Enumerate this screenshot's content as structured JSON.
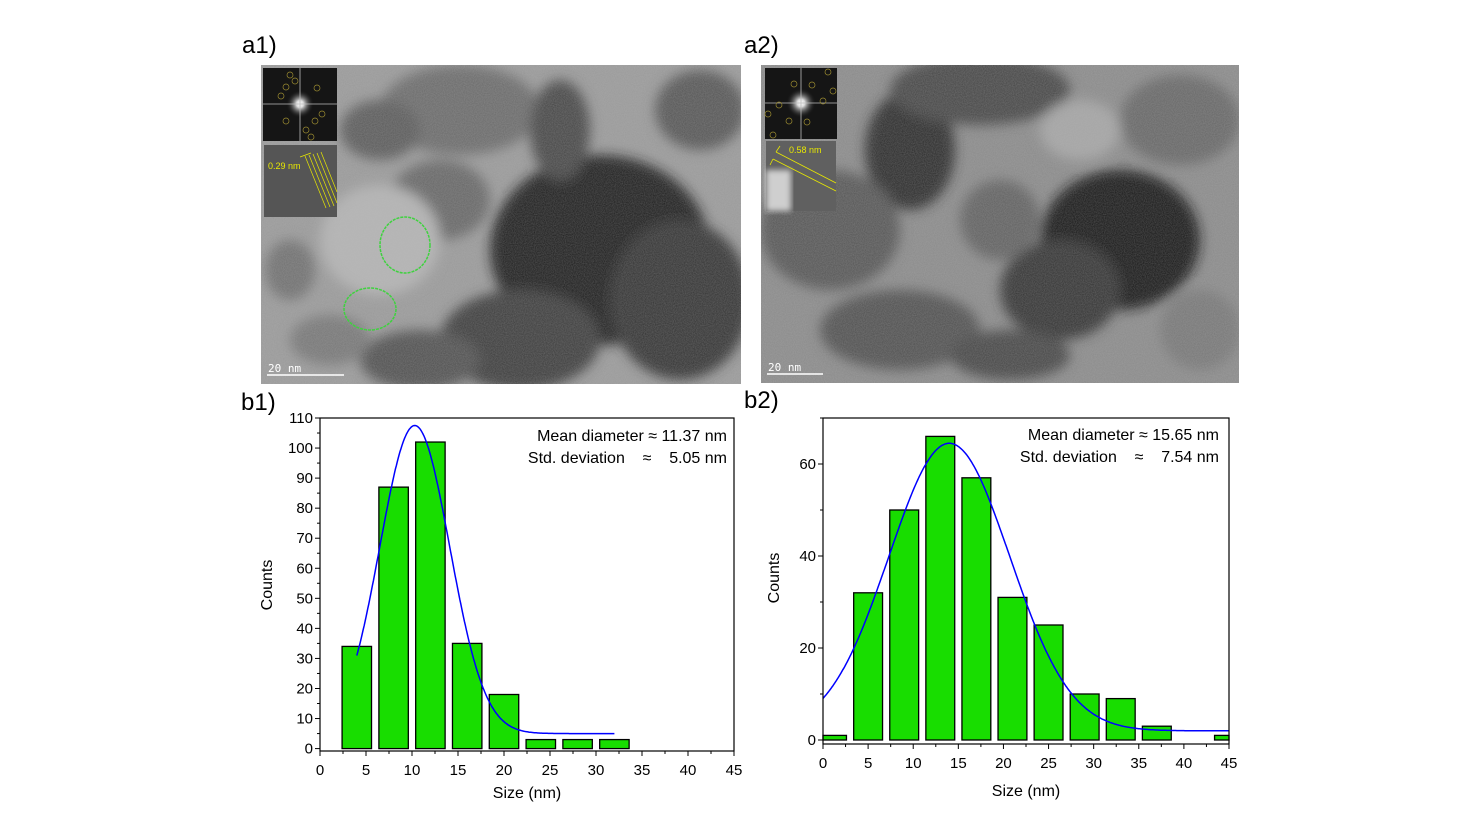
{
  "panels": {
    "a1": {
      "label": "a1)",
      "inset_spacing": "0.29 nm",
      "scale_bar": "20 nm"
    },
    "a2": {
      "label": "a2)",
      "inset_spacing": "0.58 nm",
      "scale_bar": "20 nm"
    },
    "b1": {
      "label": "b1)"
    },
    "b2": {
      "label": "b2)"
    }
  },
  "colors": {
    "bar_fill": "#18dd00",
    "bar_edge": "#000000",
    "fit_line": "#0000ff",
    "inset_text": "#e8e800",
    "highlight_circle": "#3fd23f"
  },
  "chart_data": [
    {
      "id": "b1",
      "type": "bar",
      "xlabel": "Size (nm)",
      "ylabel": "Counts",
      "xlim": [
        0,
        45
      ],
      "ylim": [
        -0.8,
        110
      ],
      "xticks": [
        0,
        5,
        10,
        15,
        20,
        25,
        30,
        35,
        40,
        45
      ],
      "yticks": [
        0,
        10,
        20,
        30,
        40,
        50,
        60,
        70,
        80,
        90,
        100,
        110
      ],
      "bin_centers": [
        4,
        8,
        12,
        16,
        20,
        24,
        28,
        32
      ],
      "bin_width": 3.2,
      "values": [
        34,
        87,
        102,
        35,
        18,
        3,
        3,
        3
      ],
      "fit": {
        "type": "gaussian",
        "y0": 5,
        "amplitude": 102.5,
        "center": 10.3,
        "sigma": 3.8,
        "range": [
          4,
          32
        ]
      },
      "annotations": [
        "Mean diameter ≈ 11.37 nm",
        "Std. deviation    ≈    5.05 nm"
      ]
    },
    {
      "id": "b2",
      "type": "bar",
      "xlabel": "Size (nm)",
      "ylabel": "Counts",
      "xlim": [
        0,
        45
      ],
      "ylim": [
        -0.87,
        70
      ],
      "xticks": [
        0,
        5,
        10,
        15,
        20,
        25,
        30,
        35,
        40,
        45
      ],
      "yticks": [
        0,
        20,
        40,
        60
      ],
      "bin_centers": [
        1,
        5,
        9,
        13,
        17,
        21,
        25,
        29,
        33,
        37,
        41,
        45
      ],
      "bin_width": 3.2,
      "values": [
        1,
        32,
        50,
        66,
        57,
        31,
        25,
        10,
        9,
        3,
        0,
        1
      ],
      "fit": {
        "type": "gaussian",
        "y0": 2,
        "amplitude": 62.5,
        "center": 14,
        "sigma": 6.7,
        "range": [
          0,
          45
        ]
      },
      "annotations": [
        "Mean diameter ≈ 15.65 nm",
        "Std. deviation    ≈    7.54 nm"
      ]
    }
  ]
}
